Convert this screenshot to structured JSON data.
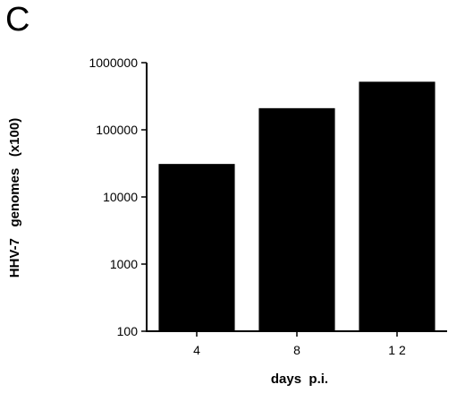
{
  "panel_label": "C",
  "chart_data": {
    "type": "bar",
    "title": "",
    "categories": [
      "4",
      "8",
      "1 2"
    ],
    "values": [
      31000,
      210000,
      520000
    ],
    "xlabel": "days  p.i.",
    "ylabel": "HHV-7   genomes   (x100)",
    "yscale": "log",
    "ylim": [
      100,
      1000000
    ],
    "yticks": [
      100,
      1000,
      10000,
      100000,
      1000000
    ],
    "ytick_labels": [
      "100",
      "1000",
      "10000",
      "100000",
      "1000000"
    ],
    "bar_color": "#000000",
    "grid": false,
    "legend": "none"
  }
}
